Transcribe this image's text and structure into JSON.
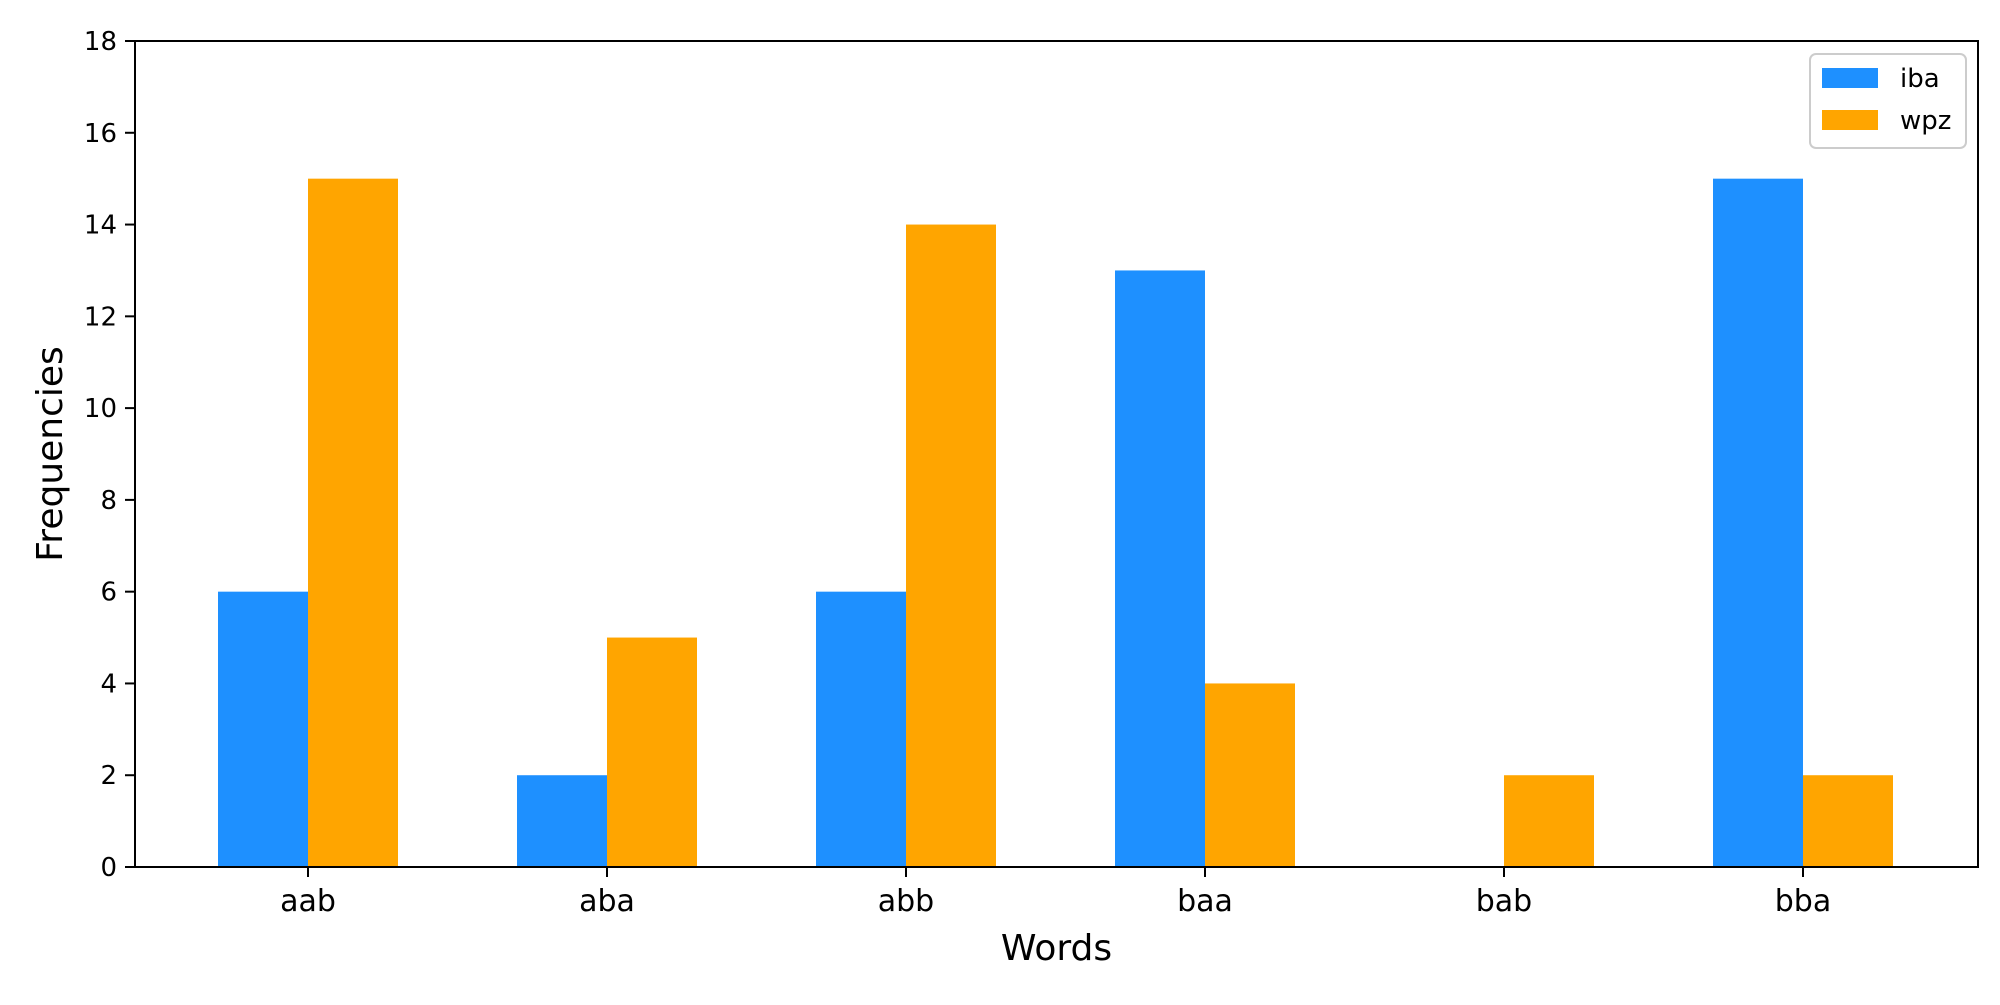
{
  "chart_data": {
    "type": "bar",
    "title": "",
    "xlabel": "Words",
    "ylabel": "Frequencies",
    "categories": [
      "aab",
      "aba",
      "abb",
      "baa",
      "bab",
      "bba"
    ],
    "series": [
      {
        "name": "iba",
        "color": "#1e90ff",
        "values": [
          6,
          2,
          6,
          13,
          0,
          15
        ]
      },
      {
        "name": "wpz",
        "color": "#ffa500",
        "values": [
          15,
          5,
          14,
          4,
          2,
          2
        ]
      }
    ],
    "ylim": [
      0,
      18
    ],
    "yticks": [
      0,
      2,
      4,
      6,
      8,
      10,
      12,
      14,
      16,
      18
    ],
    "grid": false,
    "legend_position": "top-right"
  }
}
